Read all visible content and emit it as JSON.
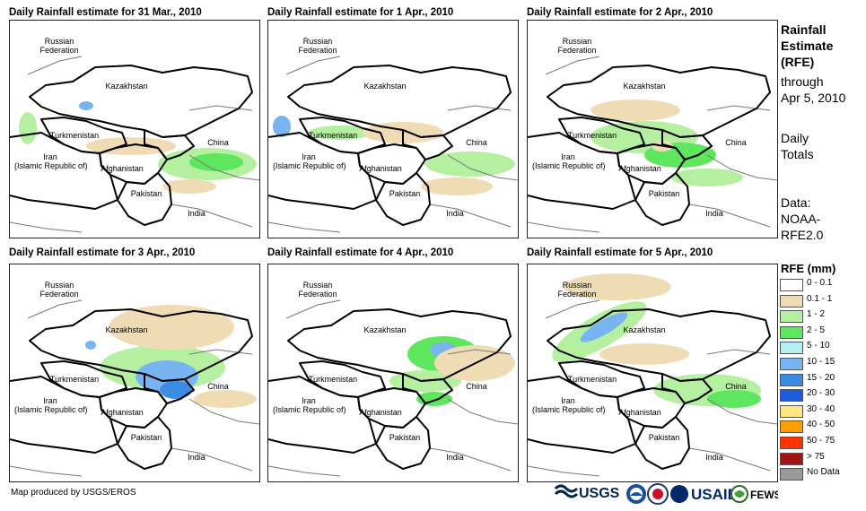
{
  "panels": [
    {
      "title": "Daily Rainfall estimate for 31 Mar., 2010"
    },
    {
      "title": "Daily Rainfall estimate for 1 Apr., 2010"
    },
    {
      "title": "Daily Rainfall estimate for 2 Apr., 2010"
    },
    {
      "title": "Daily Rainfall estimate for 3 Apr., 2010"
    },
    {
      "title": "Daily Rainfall estimate for 4 Apr., 2010"
    },
    {
      "title": "Daily Rainfall estimate for 5 Apr., 2010"
    }
  ],
  "map_labels": {
    "russia_1": "Russian",
    "russia_2": "Federation",
    "kazakhstan": "Kazakhstan",
    "turkmenistan": "Turkmenistan",
    "iran_1": "Iran",
    "iran_2": "(Islamic Republic of)",
    "afghanistan": "Afghanistan",
    "pakistan": "Pakistan",
    "china": "China",
    "india": "India"
  },
  "side_text": {
    "line1": "Rainfall",
    "line2": "Estimate",
    "line3": "(RFE)",
    "line4": "through",
    "line5": "Apr 5, 2010",
    "line6": "Daily",
    "line7": "Totals",
    "line8": "Data:",
    "line9": "NOAA-",
    "line10": "RFE2.0"
  },
  "legend": {
    "title": "RFE (mm)",
    "items": [
      {
        "label": "0 - 0.1",
        "color": "#ffffff"
      },
      {
        "label": "0.1 - 1",
        "color": "#f0dcb4"
      },
      {
        "label": "1 - 2",
        "color": "#b4f0a0"
      },
      {
        "label": "2 - 5",
        "color": "#5ee65e"
      },
      {
        "label": "5 - 10",
        "color": "#b4f0f0"
      },
      {
        "label": "10 - 15",
        "color": "#78b4f0"
      },
      {
        "label": "15 - 20",
        "color": "#3c8ce6"
      },
      {
        "label": "20 - 30",
        "color": "#1e5adc"
      },
      {
        "label": "30 - 40",
        "color": "#ffe682"
      },
      {
        "label": "40 - 50",
        "color": "#ffa000"
      },
      {
        "label": "50 - 75",
        "color": "#ff3200"
      },
      {
        "label": "> 75",
        "color": "#a01414"
      },
      {
        "label": "No Data",
        "color": "#999999"
      }
    ]
  },
  "footer": {
    "credit": "Map produced by USGS/EROS"
  },
  "logos": {
    "usgs": "USGS",
    "usaid": "USAID",
    "fews": "FEWS NET"
  }
}
